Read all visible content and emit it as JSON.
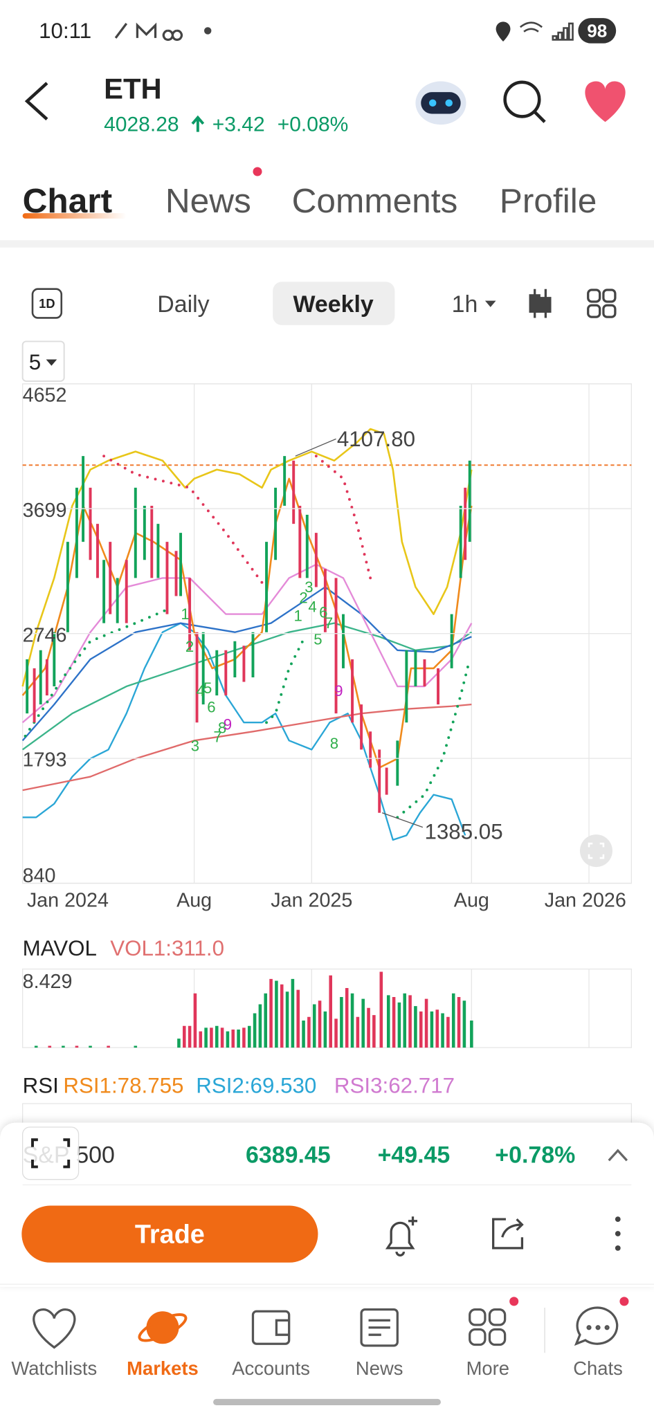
{
  "status_bar": {
    "time": "10:11",
    "battery": "98"
  },
  "header": {
    "symbol": "ETH",
    "price": "4028.28",
    "change": "+3.42",
    "change_percent": "+0.08%"
  },
  "tabs": [
    "Chart",
    "News",
    "Comments",
    "Profile"
  ],
  "toolbar": {
    "period_icon": "1D",
    "periods": [
      "Daily",
      "Weekly"
    ],
    "interval": "1h",
    "indicator_menu": "5"
  },
  "price_chart": {
    "ylim": [
      840,
      4652
    ],
    "yticks": [
      4652,
      3699,
      2746,
      1793,
      840
    ],
    "xticks": [
      "Jan 2024",
      "Aug",
      "Jan 2025",
      "Aug",
      "Jan 2026"
    ],
    "high_label": "4107.80",
    "low_label": "1385.05",
    "wave_labels": [
      "1",
      "2",
      "3",
      "4",
      "5",
      "6",
      "7",
      "8",
      "9",
      "1",
      "2",
      "3",
      "4",
      "6",
      "7",
      "5",
      "8",
      "9"
    ]
  },
  "volume": {
    "title": "MAVOL",
    "vol1": "VOL1:311.0",
    "max_label": "8.429"
  },
  "rsi": {
    "title": "RSI",
    "rsi1": "RSI1:78.755",
    "rsi2": "RSI2:69.530",
    "rsi3": "RSI3:62.717"
  },
  "ticker_bar": {
    "name": "S&P 500",
    "price": "6389.45",
    "change": "+49.45",
    "change_percent": "+0.78%"
  },
  "actions": {
    "trade": "Trade"
  },
  "nav": [
    "Watchlists",
    "Markets",
    "Accounts",
    "News",
    "More",
    "Chats"
  ]
}
